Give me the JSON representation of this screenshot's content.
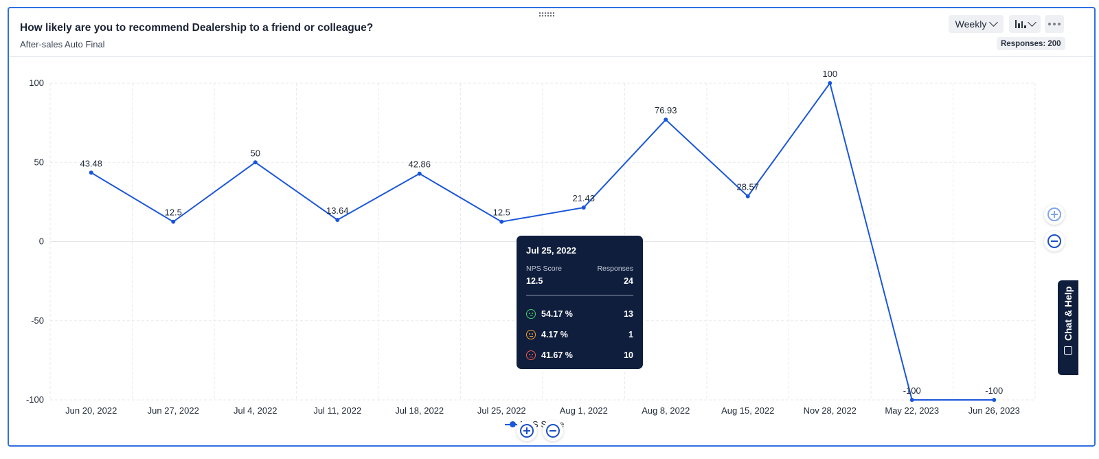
{
  "header": {
    "title": "How likely are you to recommend Dealership to a friend or colleague?",
    "subtitle": "After-sales Auto Final",
    "period_select": "Weekly",
    "responses_badge": "Responses: 200"
  },
  "chart_data": {
    "type": "line",
    "categories": [
      "Jun 20, 2022",
      "Jun 27, 2022",
      "Jul 4, 2022",
      "Jul 11, 2022",
      "Jul 18, 2022",
      "Jul 25, 2022",
      "Aug 1, 2022",
      "Aug 8, 2022",
      "Aug 15, 2022",
      "Nov 28, 2022",
      "May 22, 2023",
      "Jun 26, 2023"
    ],
    "series": [
      {
        "name": "NPS Score",
        "values": [
          43.48,
          12.5,
          50,
          13.64,
          42.86,
          12.5,
          21.43,
          76.93,
          28.57,
          100,
          -100,
          -100
        ],
        "color": "#1a56db"
      }
    ],
    "data_labels": [
      "43.48",
      "12.5",
      "50",
      "13.64",
      "42.86",
      "12.5",
      "21.43",
      "76.93",
      "28.57",
      "100",
      "-100",
      "-100"
    ],
    "ylim": [
      -100,
      100
    ],
    "yticks": [
      100,
      50,
      0,
      -50,
      -100
    ],
    "grid": true,
    "legend": "bottom-center"
  },
  "legend": {
    "label": "NPS Score"
  },
  "tooltip": {
    "date": "Jul 25, 2022",
    "score_label": "NPS Score",
    "responses_label": "Responses",
    "score": "12.5",
    "responses": "24",
    "segments": [
      {
        "icon": "happy-face-icon",
        "percent": "54.17 %",
        "count": "13",
        "color": "#3ecf6d"
      },
      {
        "icon": "neutral-face-icon",
        "percent": "4.17 %",
        "count": "1",
        "color": "#f0a030"
      },
      {
        "icon": "sad-face-icon",
        "percent": "41.67 %",
        "count": "10",
        "color": "#f05a4a"
      }
    ]
  },
  "chat": {
    "label": "Chat & Help"
  }
}
